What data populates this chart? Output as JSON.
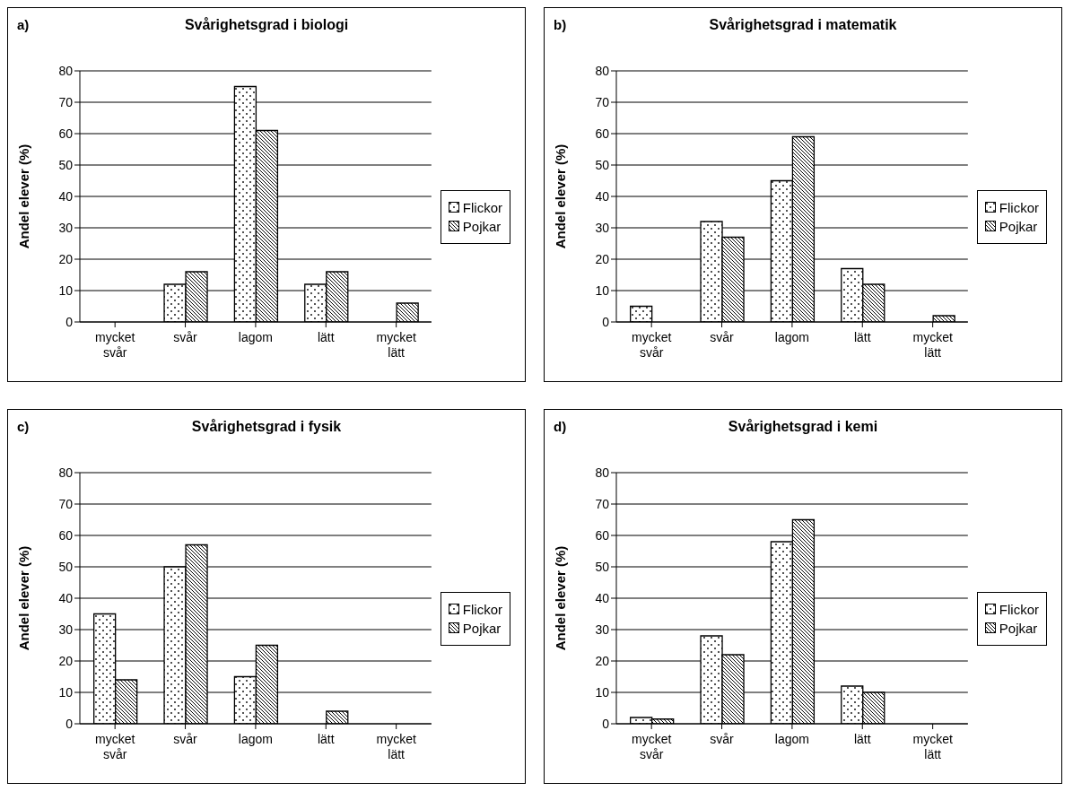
{
  "chart_data": [
    {
      "type": "bar",
      "title": "Svårighetsgrad i biologi",
      "annotations": [
        "a)"
      ],
      "ylabel": "Andel elever (%)",
      "categories": [
        "mycket svår",
        "svår",
        "lagom",
        "lätt",
        "mycket lätt"
      ],
      "series": [
        {
          "name": "Flickor",
          "values": [
            0,
            12,
            75,
            12,
            0
          ]
        },
        {
          "name": "Pojkar",
          "values": [
            0,
            16,
            61,
            16,
            6
          ]
        }
      ],
      "ylim": [
        0,
        80
      ],
      "yticks": [
        0,
        10,
        20,
        30,
        40,
        50,
        60,
        70,
        80
      ],
      "grid": "y",
      "legend": "right"
    },
    {
      "type": "bar",
      "title": "Svårighetsgrad i matematik",
      "annotations": [
        "b)"
      ],
      "ylabel": "Andel elever (%)",
      "categories": [
        "mycket svår",
        "svår",
        "lagom",
        "lätt",
        "mycket lätt"
      ],
      "series": [
        {
          "name": "Flickor",
          "values": [
            5,
            32,
            45,
            17,
            0
          ]
        },
        {
          "name": "Pojkar",
          "values": [
            0,
            27,
            59,
            12,
            2
          ]
        }
      ],
      "ylim": [
        0,
        80
      ],
      "yticks": [
        0,
        10,
        20,
        30,
        40,
        50,
        60,
        70,
        80
      ],
      "grid": "y",
      "legend": "right"
    },
    {
      "type": "bar",
      "title": "Svårighetsgrad i fysik",
      "annotations": [
        "c)"
      ],
      "ylabel": "Andel elever (%)",
      "categories": [
        "mycket svår",
        "svår",
        "lagom",
        "lätt",
        "mycket lätt"
      ],
      "series": [
        {
          "name": "Flickor",
          "values": [
            35,
            50,
            15,
            0,
            0
          ]
        },
        {
          "name": "Pojkar",
          "values": [
            14,
            57,
            25,
            4,
            0
          ]
        }
      ],
      "ylim": [
        0,
        80
      ],
      "yticks": [
        0,
        10,
        20,
        30,
        40,
        50,
        60,
        70,
        80
      ],
      "grid": "y",
      "legend": "right"
    },
    {
      "type": "bar",
      "title": "Svårighetsgrad i kemi",
      "annotations": [
        "d)"
      ],
      "ylabel": "Andel elever (%)",
      "categories": [
        "mycket svår",
        "svår",
        "lagom",
        "lätt",
        "mycket lätt"
      ],
      "series": [
        {
          "name": "Flickor",
          "values": [
            2,
            28,
            58,
            12,
            0
          ]
        },
        {
          "name": "Pojkar",
          "values": [
            1.5,
            22,
            65,
            10,
            0
          ]
        }
      ],
      "ylim": [
        0,
        80
      ],
      "yticks": [
        0,
        10,
        20,
        30,
        40,
        50,
        60,
        70,
        80
      ],
      "grid": "y",
      "legend": "right"
    }
  ]
}
